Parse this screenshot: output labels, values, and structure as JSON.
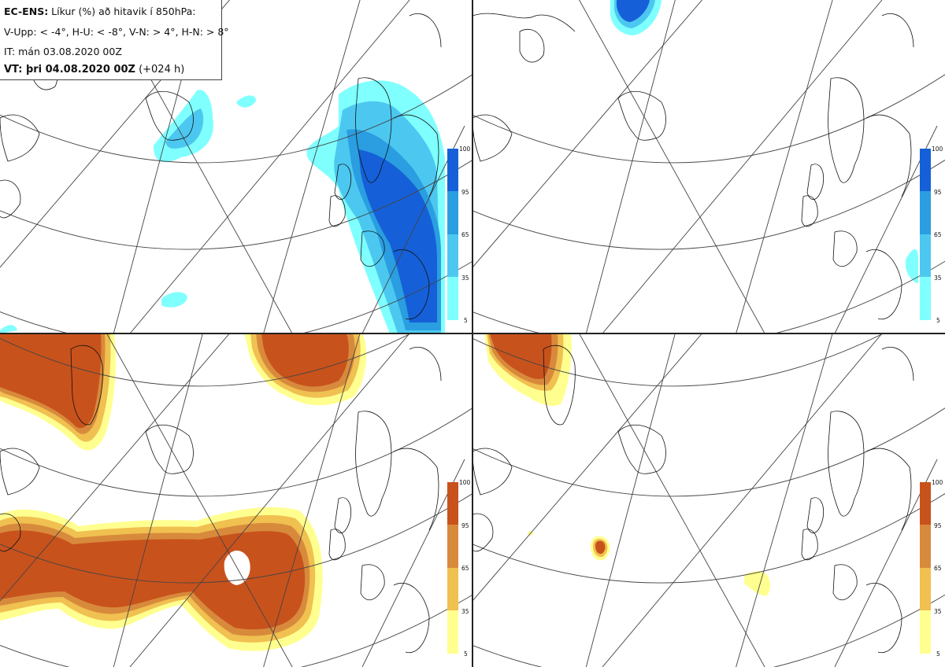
{
  "header": {
    "model": "EC-ENS:",
    "title_rest": " Líkur (%) að hitavik í 850hPa:",
    "thresholds": "V-Upp: < -4°, H-U: < -8°, V-N: > 4°, H-N: > 8°",
    "init_time": "IT: mán 03.08.2020 00Z",
    "valid_label": "VT: þri 04.08.2020 00Z",
    "lead_time": " (+024 h)"
  },
  "colorbars": {
    "ticks": [
      "100",
      "95",
      "65",
      "35",
      "5"
    ],
    "cold_colors": [
      "#80ffff",
      "#4cc8f0",
      "#2a9ee0",
      "#1560d8"
    ],
    "warm_colors": [
      "#ffff90",
      "#f0c050",
      "#d88a3c",
      "#c8521c"
    ]
  },
  "panels": [
    {
      "id": "V-Upp",
      "scheme": "cold"
    },
    {
      "id": "H-U",
      "scheme": "cold"
    },
    {
      "id": "V-N",
      "scheme": "warm"
    },
    {
      "id": "H-N",
      "scheme": "warm"
    }
  ]
}
